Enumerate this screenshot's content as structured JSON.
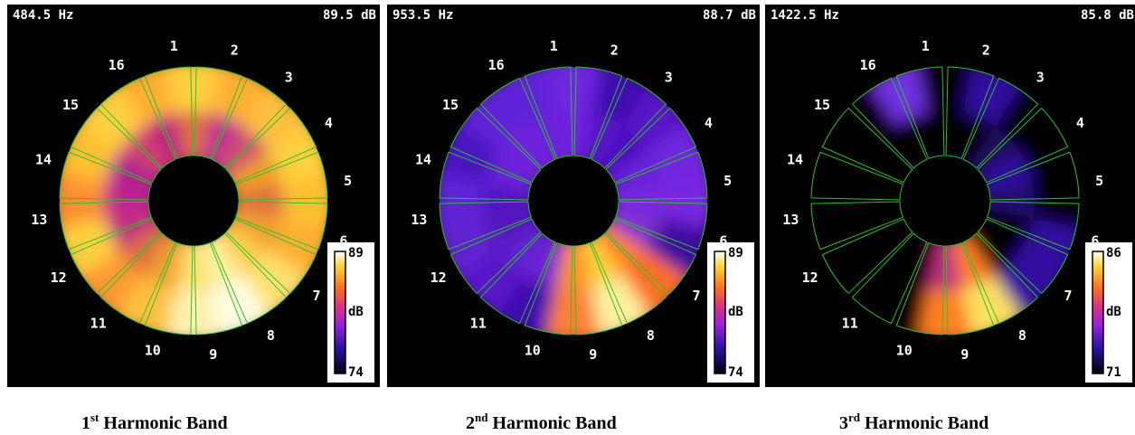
{
  "panels": [
    {
      "frequency": "484.5 Hz",
      "level": "89.5 dB",
      "sectors": [
        "1",
        "2",
        "3",
        "4",
        "5",
        "6",
        "7",
        "8",
        "9",
        "10",
        "11",
        "12",
        "13",
        "14",
        "15",
        "16"
      ],
      "colorbar": {
        "max": "89",
        "unit": "dB",
        "min": "74"
      },
      "caption": {
        "number": "1",
        "suffix": "st",
        "text": "Harmonic Band"
      }
    },
    {
      "frequency": "953.5 Hz",
      "level": "88.7 dB",
      "sectors": [
        "1",
        "2",
        "3",
        "4",
        "5",
        "6",
        "7",
        "8",
        "9",
        "10",
        "11",
        "12",
        "13",
        "14",
        "15",
        "16"
      ],
      "colorbar": {
        "max": "89",
        "unit": "dB",
        "min": "74"
      },
      "caption": {
        "number": "2",
        "suffix": "nd",
        "text": "Harmonic Band"
      }
    },
    {
      "frequency": "1422.5 Hz",
      "level": "85.8 dB",
      "sectors": [
        "1",
        "2",
        "3",
        "4",
        "5",
        "6",
        "7",
        "8",
        "9",
        "10",
        "11",
        "12",
        "13",
        "14",
        "15",
        "16"
      ],
      "colorbar": {
        "max": "86",
        "unit": "dB",
        "min": "71"
      },
      "caption": {
        "number": "3",
        "suffix": "rd",
        "text": "Harmonic Band"
      }
    }
  ]
}
